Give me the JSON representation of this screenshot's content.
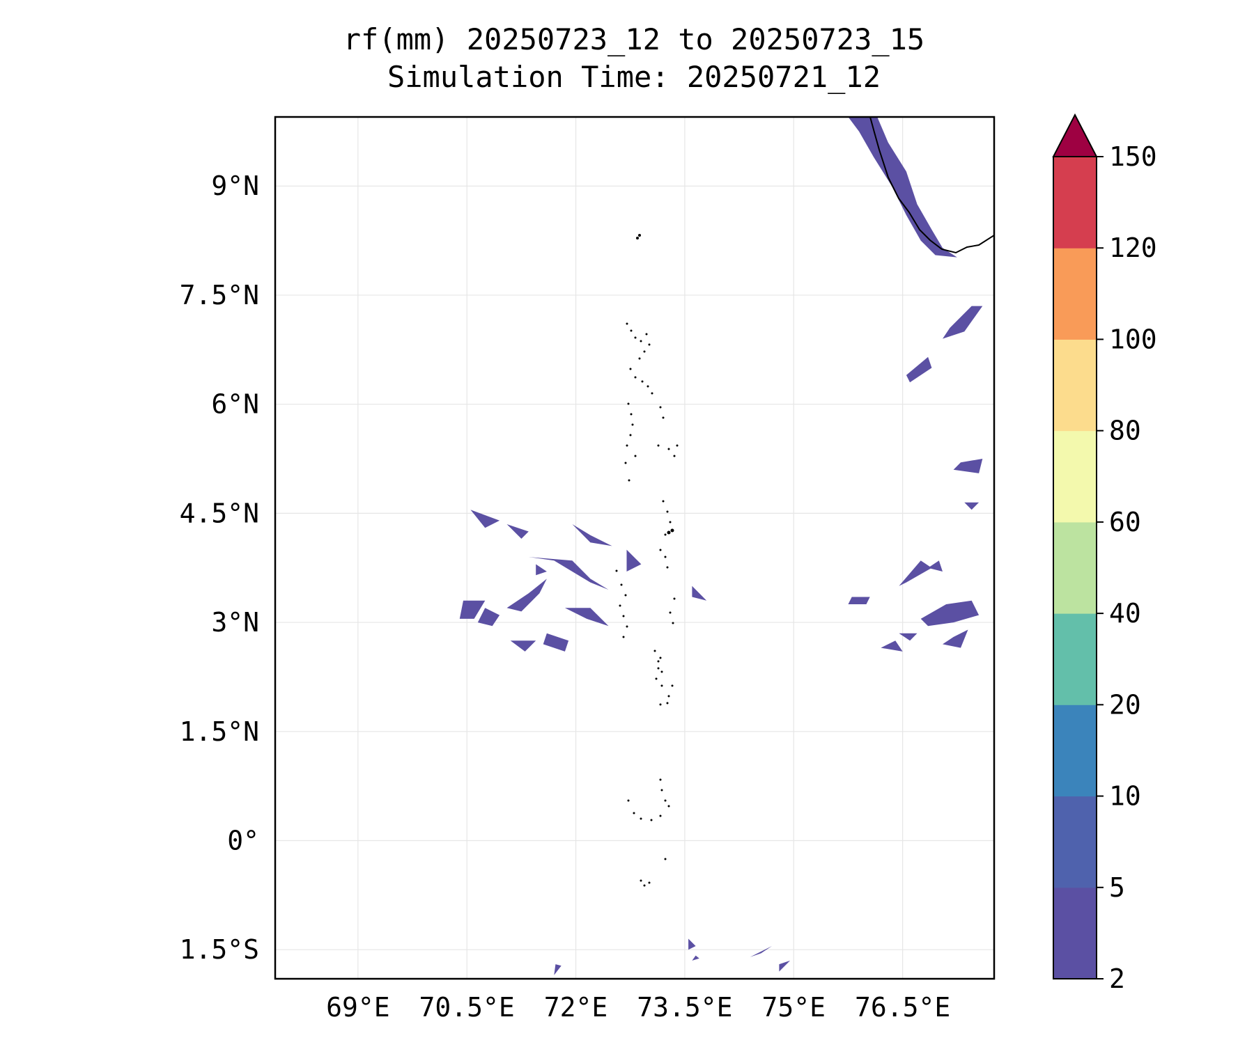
{
  "title": {
    "line1": "rf(mm) 20250723_12 to 20250723_15",
    "line2": "Simulation Time: 20250721_12"
  },
  "map": {
    "lon_range": [
      67.86,
      77.76
    ],
    "lat_range": [
      -1.9,
      9.95
    ],
    "lon_ticks": [
      {
        "value": 69.0,
        "label": "69°E"
      },
      {
        "value": 70.5,
        "label": "70.5°E"
      },
      {
        "value": 72.0,
        "label": "72°E"
      },
      {
        "value": 73.5,
        "label": "73.5°E"
      },
      {
        "value": 75.0,
        "label": "75°E"
      },
      {
        "value": 76.5,
        "label": "76.5°E"
      }
    ],
    "lat_ticks": [
      {
        "value": 9.0,
        "label": "9°N"
      },
      {
        "value": 7.5,
        "label": "7.5°N"
      },
      {
        "value": 6.0,
        "label": "6°N"
      },
      {
        "value": 4.5,
        "label": "4.5°N"
      },
      {
        "value": 3.0,
        "label": "3°N"
      },
      {
        "value": 1.5,
        "label": "1.5°N"
      },
      {
        "value": 0.0,
        "label": "0°"
      },
      {
        "value": -1.5,
        "label": "1.5°S"
      }
    ],
    "gridlines": true,
    "rain_color": "#5b50a3",
    "rain_polygons": [
      [
        [
          75.75,
          9.95
        ],
        [
          76.15,
          9.95
        ],
        [
          76.3,
          9.6
        ],
        [
          76.55,
          9.2
        ],
        [
          76.7,
          8.75
        ],
        [
          76.9,
          8.4
        ],
        [
          77.05,
          8.15
        ],
        [
          77.25,
          8.02
        ],
        [
          76.95,
          8.05
        ],
        [
          76.75,
          8.25
        ],
        [
          76.55,
          8.6
        ],
        [
          76.35,
          9.0
        ],
        [
          76.1,
          9.4
        ],
        [
          75.9,
          9.75
        ]
      ],
      [
        [
          77.15,
          7.05
        ],
        [
          77.45,
          7.35
        ],
        [
          77.6,
          7.35
        ],
        [
          77.35,
          7.0
        ],
        [
          77.05,
          6.9
        ]
      ],
      [
        [
          76.55,
          6.4
        ],
        [
          76.85,
          6.65
        ],
        [
          76.9,
          6.5
        ],
        [
          76.6,
          6.3
        ]
      ],
      [
        [
          77.3,
          5.2
        ],
        [
          77.6,
          5.25
        ],
        [
          77.55,
          5.05
        ],
        [
          77.2,
          5.1
        ]
      ],
      [
        [
          76.55,
          3.55
        ],
        [
          76.9,
          3.75
        ],
        [
          76.75,
          3.85
        ],
        [
          76.45,
          3.5
        ]
      ],
      [
        [
          76.75,
          3.05
        ],
        [
          77.1,
          3.25
        ],
        [
          77.45,
          3.3
        ],
        [
          77.55,
          3.1
        ],
        [
          77.2,
          3.0
        ],
        [
          76.85,
          2.95
        ]
      ],
      [
        [
          77.2,
          2.8
        ],
        [
          77.4,
          2.9
        ],
        [
          77.3,
          2.65
        ],
        [
          77.05,
          2.7
        ]
      ],
      [
        [
          75.8,
          3.35
        ],
        [
          76.05,
          3.35
        ],
        [
          76.0,
          3.25
        ],
        [
          75.75,
          3.25
        ]
      ],
      [
        [
          76.45,
          2.85
        ],
        [
          76.7,
          2.85
        ],
        [
          76.6,
          2.75
        ]
      ],
      [
        [
          76.2,
          2.65
        ],
        [
          76.4,
          2.75
        ],
        [
          76.5,
          2.6
        ]
      ],
      [
        [
          76.85,
          3.75
        ],
        [
          77.0,
          3.85
        ],
        [
          77.05,
          3.7
        ]
      ],
      [
        [
          77.35,
          4.65
        ],
        [
          77.55,
          4.65
        ],
        [
          77.45,
          4.55
        ]
      ],
      [
        [
          70.45,
          3.3
        ],
        [
          70.75,
          3.3
        ],
        [
          70.6,
          3.05
        ],
        [
          70.4,
          3.05
        ]
      ],
      [
        [
          70.75,
          3.2
        ],
        [
          70.95,
          3.1
        ],
        [
          70.85,
          2.95
        ],
        [
          70.65,
          3.0
        ]
      ],
      [
        [
          71.05,
          3.2
        ],
        [
          71.35,
          3.4
        ],
        [
          71.6,
          3.6
        ],
        [
          71.5,
          3.4
        ],
        [
          71.25,
          3.15
        ]
      ],
      [
        [
          71.35,
          3.9
        ],
        [
          71.7,
          3.85
        ],
        [
          71.95,
          3.7
        ],
        [
          72.2,
          3.55
        ],
        [
          72.45,
          3.45
        ],
        [
          72.2,
          3.6
        ],
        [
          71.95,
          3.85
        ]
      ],
      [
        [
          71.85,
          3.2
        ],
        [
          72.15,
          3.05
        ],
        [
          72.45,
          2.95
        ],
        [
          72.2,
          3.2
        ]
      ],
      [
        [
          71.95,
          4.35
        ],
        [
          72.2,
          4.1
        ],
        [
          72.5,
          4.05
        ],
        [
          72.2,
          4.2
        ]
      ],
      [
        [
          71.05,
          4.35
        ],
        [
          71.35,
          4.25
        ],
        [
          71.25,
          4.15
        ]
      ],
      [
        [
          70.55,
          4.55
        ],
        [
          70.95,
          4.4
        ],
        [
          70.75,
          4.3
        ]
      ],
      [
        [
          71.1,
          2.75
        ],
        [
          71.45,
          2.75
        ],
        [
          71.3,
          2.6
        ]
      ],
      [
        [
          71.6,
          2.85
        ],
        [
          71.9,
          2.75
        ],
        [
          71.85,
          2.6
        ],
        [
          71.55,
          2.7
        ]
      ],
      [
        [
          72.7,
          4.0
        ],
        [
          72.9,
          3.8
        ],
        [
          72.7,
          3.7
        ]
      ],
      [
        [
          73.6,
          3.5
        ],
        [
          73.8,
          3.3
        ],
        [
          73.6,
          3.35
        ]
      ],
      [
        [
          71.45,
          3.8
        ],
        [
          71.6,
          3.7
        ],
        [
          71.45,
          3.65
        ]
      ],
      [
        [
          73.55,
          -1.35
        ],
        [
          73.65,
          -1.45
        ],
        [
          73.55,
          -1.5
        ]
      ],
      [
        [
          74.4,
          -1.6
        ],
        [
          74.7,
          -1.45
        ],
        [
          74.55,
          -1.55
        ]
      ],
      [
        [
          74.8,
          -1.8
        ],
        [
          74.95,
          -1.65
        ],
        [
          74.8,
          -1.7
        ]
      ],
      [
        [
          71.7,
          -1.85
        ],
        [
          71.8,
          -1.72
        ],
        [
          71.72,
          -1.7
        ]
      ],
      [
        [
          73.65,
          -1.58
        ],
        [
          73.7,
          -1.62
        ],
        [
          73.6,
          -1.65
        ]
      ]
    ]
  },
  "colorbar": {
    "levels": [
      "2",
      "5",
      "10",
      "20",
      "40",
      "60",
      "80",
      "100",
      "120",
      "150"
    ],
    "colors": [
      "#5b50a3",
      "#4f62ad",
      "#3b84bb",
      "#63bfaa",
      "#bce3a0",
      "#f3f9ad",
      "#fcdc8d",
      "#f99b58",
      "#d53e4f"
    ],
    "extend_color": "#9e0142"
  }
}
